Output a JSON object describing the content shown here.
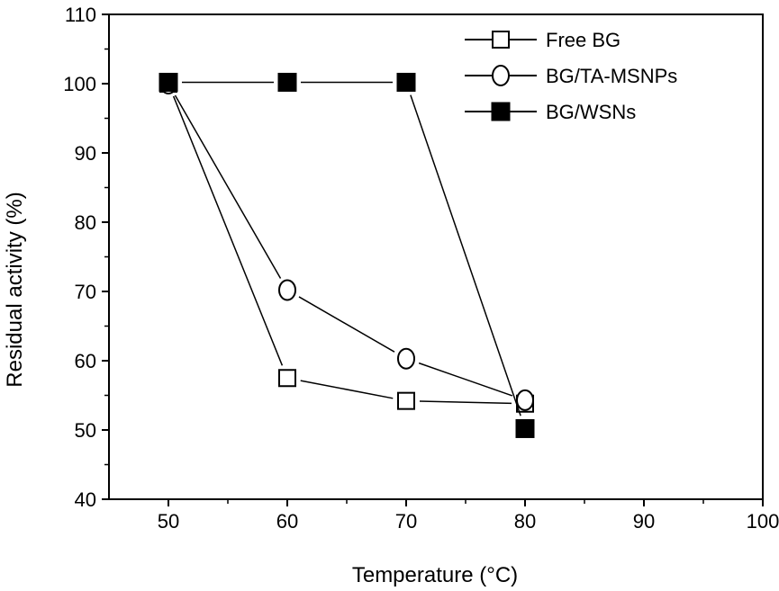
{
  "chart_data": {
    "type": "line",
    "title": "",
    "xlabel": "Temperature (°C)",
    "ylabel": "Residual activity (%)",
    "xlim": [
      45,
      100
    ],
    "ylim": [
      40,
      110
    ],
    "x_ticks": [
      50,
      60,
      70,
      80,
      90,
      100
    ],
    "y_ticks": [
      40,
      50,
      60,
      70,
      80,
      90,
      100,
      110
    ],
    "grid": false,
    "legend_position": "top-right",
    "series": [
      {
        "name": "Free BG",
        "marker": "open-square",
        "color": "#000000",
        "x": [
          50,
          60,
          70,
          80
        ],
        "y": [
          100,
          57.5,
          54.2,
          53.8
        ]
      },
      {
        "name": "BG/TA-MSNPs",
        "marker": "open-diamond",
        "color": "#000000",
        "x": [
          50,
          60,
          70,
          80
        ],
        "y": [
          100,
          70.2,
          60.3,
          54.3
        ]
      },
      {
        "name": "BG/WSNs",
        "marker": "filled-square",
        "color": "#000000",
        "x": [
          50,
          60,
          70,
          80
        ],
        "y": [
          100.2,
          100.2,
          100.2,
          50.2
        ]
      }
    ]
  }
}
